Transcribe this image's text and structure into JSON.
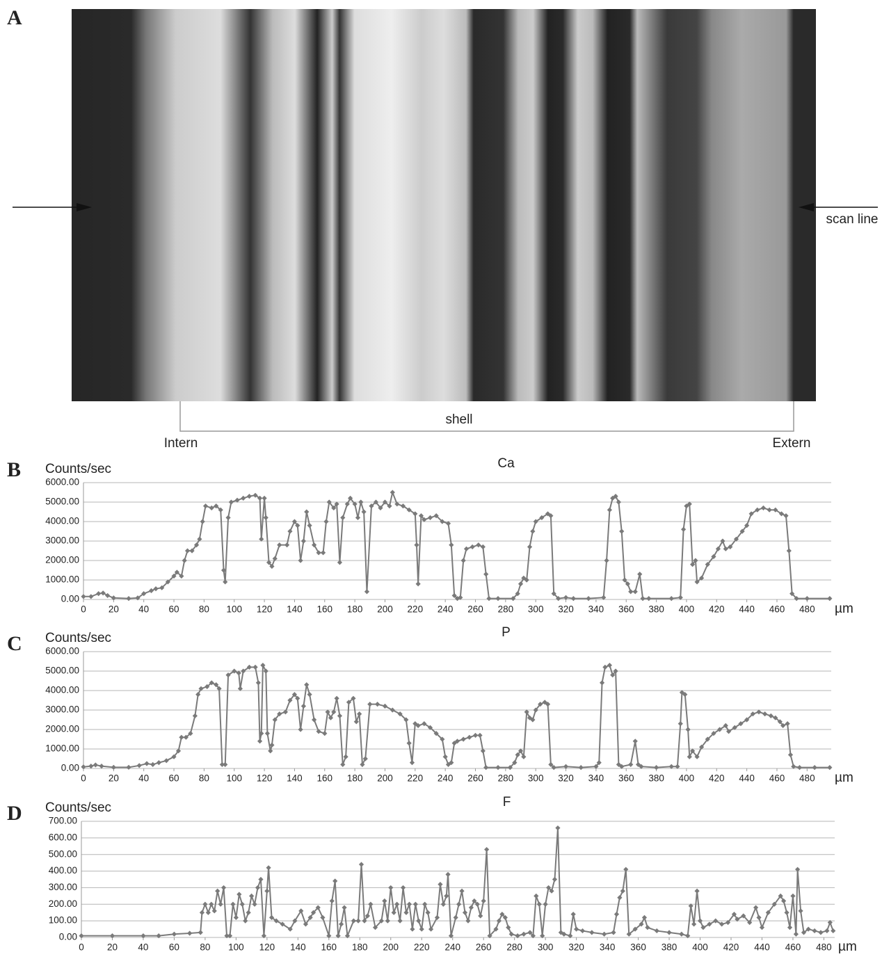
{
  "panel_a": {
    "label": "A",
    "scan_line": "scan line",
    "bracket": "shell",
    "left_end": "Intern",
    "right_end": "Extern"
  },
  "chart_data": [
    {
      "type": "line",
      "panel": "B",
      "title": "Ca",
      "y_label": "Counts/sec",
      "x_label": "µm",
      "x": [
        0,
        5,
        10,
        13,
        16,
        20,
        30,
        36,
        40,
        45,
        48,
        52,
        56,
        60,
        62,
        65,
        67,
        69,
        72,
        75,
        77,
        79,
        81,
        85,
        88,
        91,
        93,
        94,
        96,
        98,
        102,
        106,
        110,
        114,
        117,
        118,
        120,
        121,
        123,
        125,
        127,
        130,
        135,
        137,
        140,
        142,
        144,
        146,
        148,
        150,
        153,
        156,
        159,
        161,
        163,
        166,
        168,
        170,
        172,
        175,
        177,
        180,
        182,
        184,
        186,
        188,
        191,
        194,
        197,
        200,
        203,
        205,
        208,
        212,
        216,
        220,
        221,
        222,
        224,
        226,
        230,
        234,
        238,
        242,
        244,
        246,
        248,
        250,
        252,
        254,
        258,
        262,
        265,
        267,
        269,
        275,
        285,
        288,
        290,
        292,
        294,
        296,
        298,
        300,
        304,
        308,
        310,
        312,
        315,
        320,
        325,
        335,
        345,
        347,
        349,
        351,
        353,
        355,
        357,
        359,
        361,
        363,
        366,
        369,
        371,
        375,
        390,
        396,
        398,
        400,
        402,
        404,
        406,
        407,
        410,
        414,
        418,
        421,
        424,
        426,
        429,
        433,
        437,
        440,
        443,
        447,
        451,
        455,
        459,
        463,
        466,
        468,
        470,
        473,
        480,
        495
      ],
      "series": [
        {
          "color": "#7a7a7a",
          "values": [
            150,
            150,
            300,
            330,
            200,
            80,
            50,
            80,
            300,
            450,
            550,
            600,
            900,
            1200,
            1400,
            1200,
            2000,
            2500,
            2500,
            2800,
            3100,
            4000,
            4800,
            4700,
            4800,
            4600,
            1500,
            900,
            4200,
            5000,
            5100,
            5200,
            5300,
            5350,
            5200,
            3100,
            5200,
            4200,
            1900,
            1700,
            2100,
            2800,
            2800,
            3500,
            4000,
            3800,
            2000,
            3000,
            4500,
            3800,
            2800,
            2400,
            2400,
            4000,
            5000,
            4700,
            4900,
            1900,
            4200,
            4900,
            5200,
            4900,
            4200,
            5000,
            4500,
            400,
            4800,
            5000,
            4700,
            5000,
            4800,
            5500,
            4900,
            4800,
            4600,
            4400,
            2800,
            800,
            4300,
            4100,
            4200,
            4300,
            4000,
            3900,
            2800,
            200,
            50,
            100,
            2000,
            2600,
            2700,
            2800,
            2700,
            1300,
            50,
            50,
            50,
            300,
            800,
            1100,
            1000,
            2700,
            3500,
            4000,
            4200,
            4400,
            4300,
            300,
            50,
            100,
            50,
            50,
            100,
            2000,
            4600,
            5200,
            5300,
            5000,
            3500,
            1000,
            800,
            400,
            400,
            1300,
            50,
            50,
            50,
            100,
            3600,
            4800,
            4900,
            1800,
            2000,
            900,
            1100,
            1800,
            2200,
            2600,
            3000,
            2600,
            2700,
            3100,
            3500,
            3800,
            4400,
            4600,
            4700,
            4600,
            4600,
            4400,
            4300,
            2500,
            300,
            50,
            50,
            50
          ]
        }
      ],
      "xlim": [
        0,
        496
      ],
      "xticks": [
        0,
        20,
        40,
        60,
        80,
        100,
        120,
        140,
        160,
        180,
        200,
        220,
        240,
        260,
        280,
        300,
        320,
        340,
        360,
        380,
        400,
        420,
        440,
        460,
        480
      ],
      "ylim": [
        0,
        6000
      ],
      "yticks": [
        {
          "value": 0,
          "label": "0.00"
        },
        {
          "value": 1000,
          "label": "1000.00"
        },
        {
          "value": 2000,
          "label": "2000.00"
        },
        {
          "value": 3000,
          "label": "3000.00"
        },
        {
          "value": 4000,
          "label": "4000.00"
        },
        {
          "value": 5000,
          "label": "5000.00"
        },
        {
          "value": 6000,
          "label": "6000.00"
        }
      ],
      "grid": true
    },
    {
      "type": "line",
      "panel": "C",
      "title": "P",
      "y_label": "Counts/sec",
      "x_label": "µm",
      "x": [
        0,
        5,
        8,
        12,
        20,
        30,
        37,
        42,
        46,
        50,
        55,
        60,
        63,
        65,
        68,
        71,
        74,
        76,
        78,
        82,
        85,
        88,
        90,
        92,
        94,
        96,
        100,
        103,
        104,
        106,
        110,
        114,
        116,
        117,
        118,
        119,
        121,
        122,
        124,
        125,
        127,
        130,
        134,
        137,
        140,
        142,
        144,
        146,
        148,
        150,
        153,
        156,
        160,
        162,
        164,
        166,
        168,
        170,
        172,
        174,
        176,
        179,
        181,
        183,
        185,
        187,
        190,
        195,
        200,
        205,
        210,
        214,
        216,
        218,
        220,
        222,
        226,
        230,
        234,
        238,
        240,
        242,
        244,
        246,
        248,
        252,
        256,
        260,
        263,
        265,
        267,
        275,
        283,
        286,
        288,
        290,
        292,
        294,
        296,
        298,
        300,
        303,
        306,
        308,
        310,
        312,
        320,
        330,
        340,
        342,
        344,
        346,
        349,
        351,
        353,
        355,
        357,
        363,
        366,
        368,
        370,
        380,
        390,
        394,
        396,
        397,
        399,
        401,
        402,
        404,
        407,
        410,
        414,
        418,
        422,
        426,
        428,
        432,
        436,
        440,
        444,
        448,
        452,
        456,
        459,
        462,
        464,
        467,
        469,
        471,
        475,
        485,
        495
      ],
      "series": [
        {
          "color": "#7a7a7a",
          "values": [
            80,
            120,
            180,
            120,
            60,
            60,
            150,
            250,
            200,
            300,
            400,
            600,
            900,
            1600,
            1600,
            1800,
            2700,
            3800,
            4100,
            4200,
            4400,
            4300,
            4100,
            200,
            200,
            4800,
            5000,
            4900,
            4100,
            5000,
            5200,
            5200,
            4400,
            1400,
            1800,
            5300,
            5000,
            1800,
            900,
            1200,
            2500,
            2800,
            2900,
            3500,
            3800,
            3600,
            2000,
            3200,
            4300,
            3800,
            2500,
            1900,
            1800,
            2900,
            2600,
            2900,
            3600,
            2700,
            200,
            600,
            3400,
            3600,
            2400,
            2800,
            200,
            500,
            3300,
            3300,
            3200,
            3000,
            2800,
            2500,
            1300,
            300,
            2300,
            2200,
            2300,
            2100,
            1800,
            1500,
            600,
            200,
            300,
            1300,
            1400,
            1500,
            1600,
            1700,
            1700,
            900,
            50,
            50,
            50,
            300,
            700,
            900,
            600,
            2900,
            2600,
            2500,
            3000,
            3300,
            3400,
            3300,
            200,
            50,
            100,
            50,
            100,
            300,
            4400,
            5200,
            5300,
            4800,
            5000,
            200,
            100,
            200,
            1400,
            200,
            100,
            50,
            100,
            100,
            2300,
            3900,
            3800,
            2000,
            600,
            900,
            600,
            1100,
            1500,
            1800,
            2000,
            2200,
            1900,
            2100,
            2300,
            2500,
            2800,
            2900,
            2800,
            2700,
            2600,
            2400,
            2200,
            2300,
            700,
            100,
            50,
            50,
            50
          ]
        }
      ],
      "xlim": [
        0,
        496
      ],
      "xticks": [
        0,
        20,
        40,
        60,
        80,
        100,
        120,
        140,
        160,
        180,
        200,
        220,
        240,
        260,
        280,
        300,
        320,
        340,
        360,
        380,
        400,
        420,
        440,
        460,
        480
      ],
      "ylim": [
        0,
        6000
      ],
      "yticks": [
        {
          "value": 0,
          "label": "0.00"
        },
        {
          "value": 1000,
          "label": "1000.00"
        },
        {
          "value": 2000,
          "label": "2000.00"
        },
        {
          "value": 3000,
          "label": "3000.00"
        },
        {
          "value": 4000,
          "label": "4000.00"
        },
        {
          "value": 5000,
          "label": "5000.00"
        },
        {
          "value": 6000,
          "label": "6000.00"
        }
      ],
      "grid": true
    },
    {
      "type": "line",
      "panel": "D",
      "title": "F",
      "y_label": "Counts/sec",
      "x_label": "µm",
      "x": [
        0,
        20,
        40,
        50,
        60,
        70,
        77,
        78,
        80,
        82,
        84,
        86,
        88,
        90,
        92,
        94,
        96,
        98,
        100,
        102,
        104,
        106,
        108,
        110,
        112,
        114,
        116,
        118,
        120,
        121,
        123,
        126,
        130,
        135,
        138,
        142,
        145,
        148,
        150,
        153,
        156,
        160,
        162,
        164,
        166,
        168,
        170,
        172,
        176,
        179,
        181,
        183,
        185,
        187,
        190,
        194,
        196,
        198,
        200,
        202,
        204,
        206,
        208,
        210,
        212,
        214,
        216,
        218,
        220,
        222,
        224,
        226,
        230,
        232,
        234,
        236,
        237,
        239,
        242,
        244,
        246,
        248,
        250,
        252,
        254,
        256,
        258,
        260,
        262,
        264,
        268,
        270,
        272,
        274,
        276,
        278,
        282,
        286,
        290,
        292,
        294,
        296,
        298,
        300,
        302,
        304,
        306,
        308,
        310,
        312,
        316,
        318,
        320,
        324,
        330,
        338,
        344,
        346,
        348,
        350,
        352,
        354,
        358,
        362,
        364,
        366,
        372,
        380,
        388,
        392,
        394,
        396,
        398,
        400,
        402,
        406,
        410,
        414,
        418,
        422,
        424,
        428,
        432,
        436,
        438,
        440,
        444,
        448,
        452,
        454,
        456,
        458,
        460,
        462,
        463,
        465,
        467,
        470,
        474,
        478,
        482,
        484,
        486
      ],
      "series": [
        {
          "color": "#7a7a7a",
          "values": [
            10,
            10,
            10,
            10,
            20,
            25,
            30,
            150,
            200,
            150,
            200,
            160,
            280,
            200,
            300,
            10,
            10,
            200,
            120,
            260,
            200,
            100,
            150,
            250,
            200,
            300,
            350,
            10,
            280,
            420,
            120,
            100,
            80,
            50,
            100,
            160,
            80,
            120,
            150,
            180,
            120,
            10,
            220,
            340,
            10,
            80,
            180,
            10,
            100,
            100,
            440,
            100,
            130,
            200,
            60,
            100,
            220,
            100,
            300,
            150,
            200,
            100,
            300,
            150,
            200,
            50,
            200,
            100,
            50,
            200,
            150,
            50,
            120,
            320,
            200,
            250,
            380,
            10,
            120,
            200,
            280,
            150,
            100,
            180,
            220,
            200,
            130,
            220,
            530,
            10,
            50,
            100,
            140,
            120,
            60,
            20,
            10,
            20,
            30,
            10,
            250,
            200,
            10,
            200,
            300,
            280,
            350,
            660,
            30,
            20,
            10,
            140,
            50,
            40,
            30,
            20,
            30,
            140,
            240,
            280,
            410,
            20,
            50,
            80,
            120,
            60,
            40,
            30,
            20,
            10,
            190,
            80,
            280,
            100,
            60,
            80,
            100,
            80,
            90,
            140,
            110,
            130,
            90,
            180,
            120,
            60,
            150,
            200,
            250,
            220,
            150,
            60,
            250,
            20,
            410,
            160,
            30,
            50,
            40,
            30,
            40,
            90,
            40
          ]
        }
      ],
      "xlim": [
        0,
        487
      ],
      "xticks": [
        0,
        20,
        40,
        60,
        80,
        100,
        120,
        140,
        160,
        180,
        200,
        220,
        240,
        260,
        280,
        300,
        320,
        340,
        360,
        380,
        400,
        420,
        440,
        460,
        480
      ],
      "ylim": [
        0,
        700
      ],
      "yticks": [
        {
          "value": 0,
          "label": "0.00"
        },
        {
          "value": 100,
          "label": "100.00"
        },
        {
          "value": 200,
          "label": "200.00"
        },
        {
          "value": 300,
          "label": "300.00"
        },
        {
          "value": 400,
          "label": "400.00"
        },
        {
          "value": 500,
          "label": "500.00"
        },
        {
          "value": 600,
          "label": "600.00"
        },
        {
          "value": 700,
          "label": "700.00"
        }
      ],
      "grid": true
    }
  ]
}
